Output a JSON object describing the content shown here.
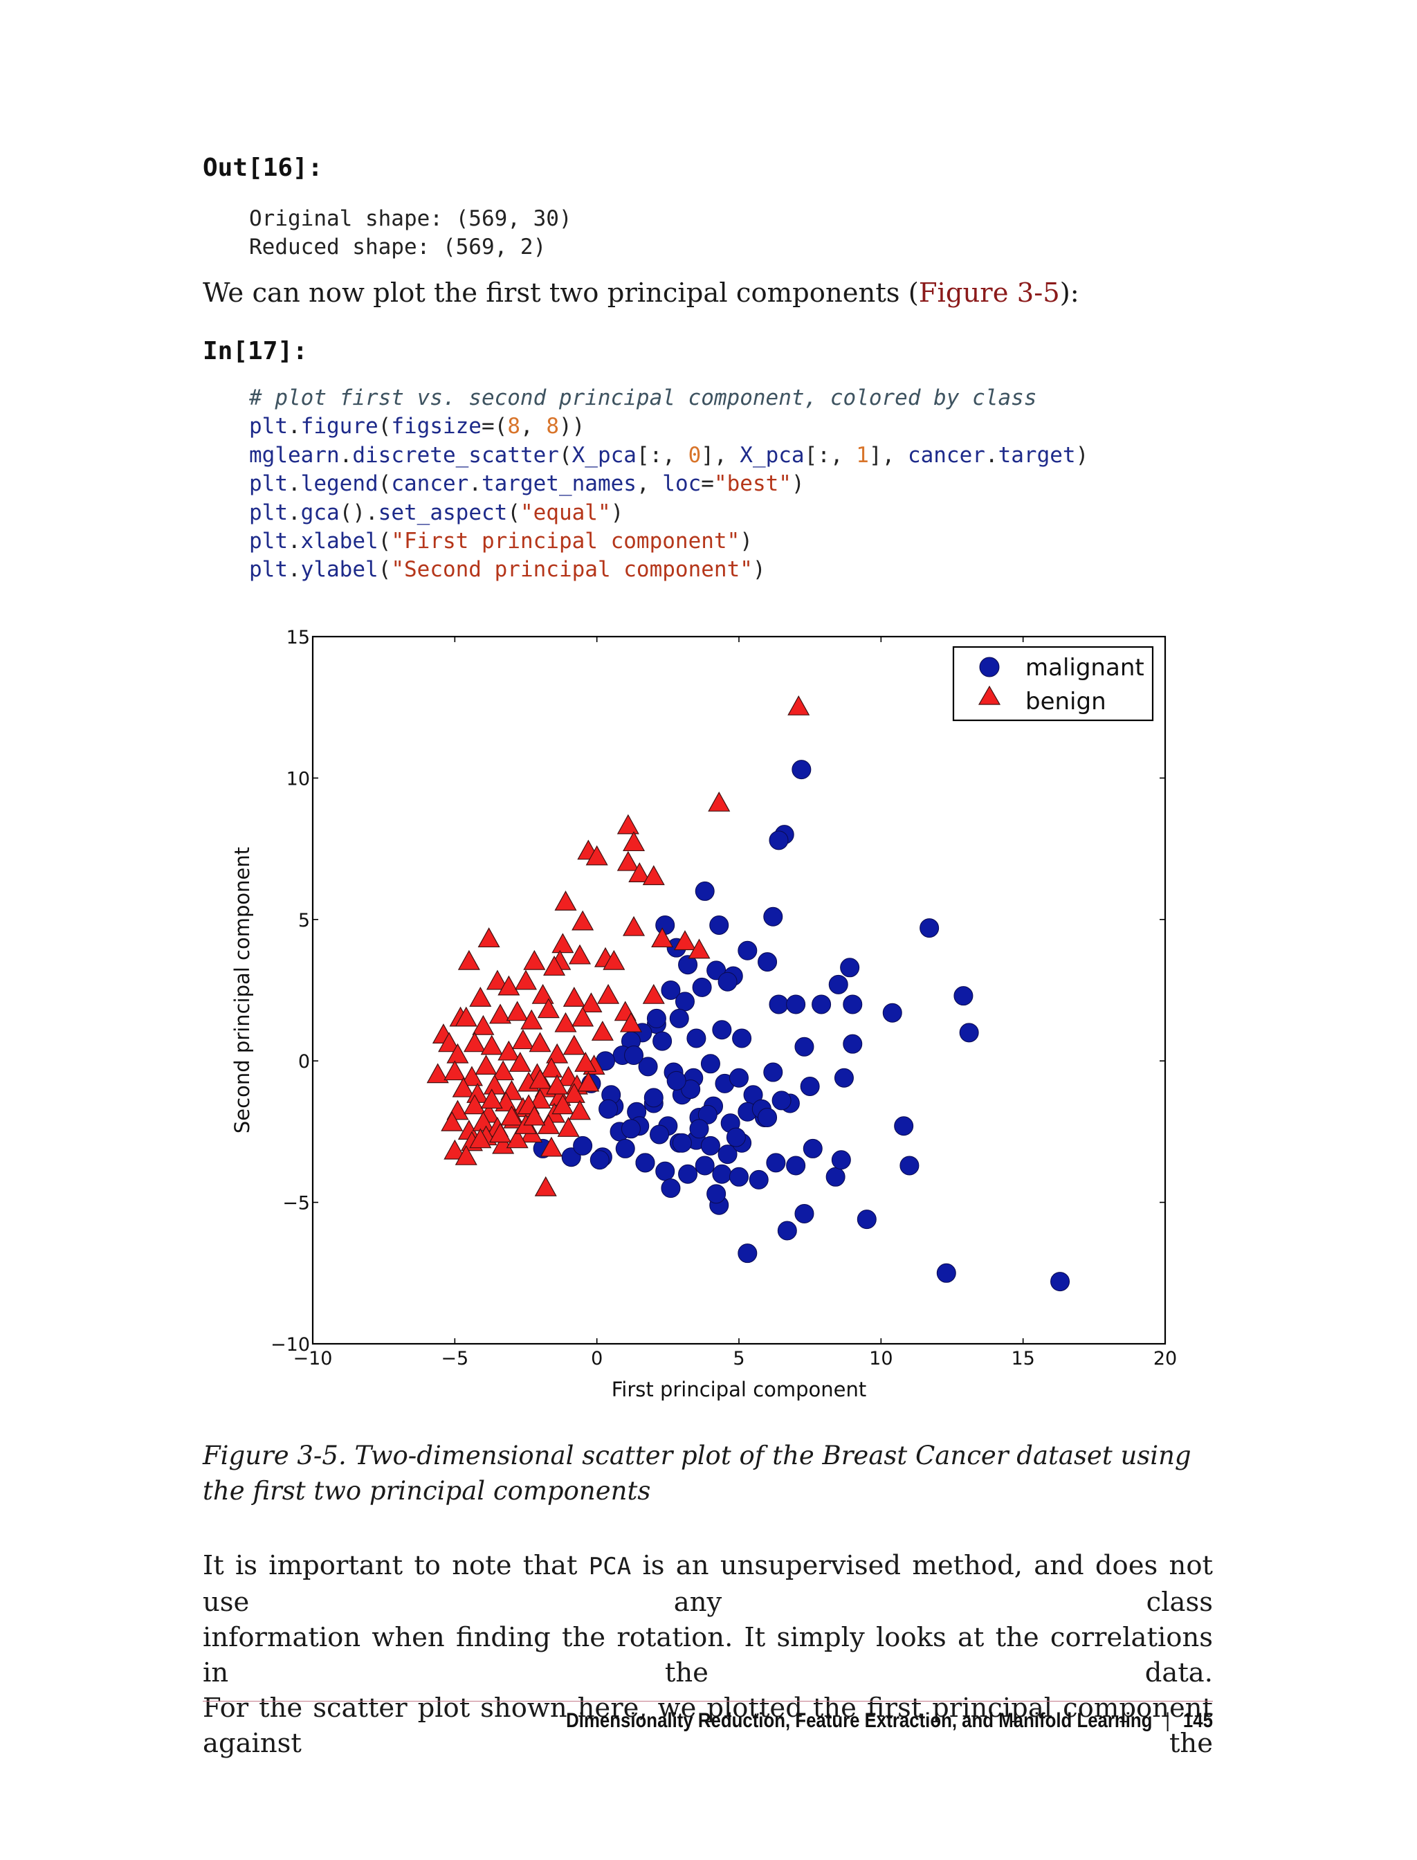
{
  "out_prompt": "Out[16]:",
  "out_lines": [
    "Original shape: (569, 30)",
    "Reduced shape: (569, 2)"
  ],
  "intro_text": "We can now plot the first two principal components (",
  "intro_link": "Figure 3-5",
  "intro_end": "):",
  "in_prompt": "In[17]:",
  "code": {
    "comment": "# plot first vs. second principal component, colored by class",
    "l1": [
      "plt",
      ".",
      "figure",
      "(",
      "figsize",
      "=(",
      "8",
      ", ",
      "8",
      "))"
    ],
    "l2": [
      "mglearn",
      ".",
      "discrete_scatter",
      "(",
      "X_pca",
      "[:, ",
      "0",
      "], ",
      "X_pca",
      "[:, ",
      "1",
      "], ",
      "cancer",
      ".",
      "target",
      ")"
    ],
    "l3": [
      "plt",
      ".",
      "legend",
      "(",
      "cancer",
      ".",
      "target_names",
      ", ",
      "loc",
      "=",
      "\"best\"",
      ")"
    ],
    "l4": [
      "plt",
      ".",
      "gca",
      "().",
      "set_aspect",
      "(",
      "\"equal\"",
      ")"
    ],
    "l5": [
      "plt",
      ".",
      "xlabel",
      "(",
      "\"First principal component\"",
      ")"
    ],
    "l6": [
      "plt",
      ".",
      "ylabel",
      "(",
      "\"Second principal component\"",
      ")"
    ]
  },
  "chart_data": {
    "type": "scatter",
    "xlabel": "First principal component",
    "ylabel": "Second principal component",
    "xlim": [
      -10,
      20
    ],
    "ylim": [
      -10,
      15
    ],
    "xticks": [
      "−10",
      "−5",
      "0",
      "5",
      "10",
      "15",
      "20"
    ],
    "yticks": [
      "15",
      "10",
      "5",
      "0",
      "−5",
      "−10"
    ],
    "legend_position": "top-right",
    "grid": false,
    "series": [
      {
        "name": "malignant",
        "marker": "circle",
        "color": "#0d1aa3",
        "x": [
          7.2,
          6.6,
          6.4,
          3.8,
          6.2,
          11.7,
          2.4,
          4.3,
          2.8,
          5.3,
          6.0,
          3.2,
          4.2,
          4.8,
          8.5,
          7.9,
          4.6,
          3.7,
          2.6,
          3.1,
          8.9,
          6.4,
          7.0,
          10.4,
          12.9,
          13.1,
          9.0,
          7.3,
          8.7,
          9.0,
          5.1,
          4.4,
          3.5,
          2.9,
          2.1,
          1.6,
          1.2,
          0.9,
          0.3,
          -0.2,
          0.6,
          1.8,
          2.7,
          3.4,
          4.0,
          4.5,
          5.0,
          5.5,
          6.2,
          6.8,
          7.5,
          1.4,
          2.0,
          2.5,
          3.0,
          3.6,
          4.1,
          4.7,
          5.3,
          5.9,
          6.5,
          0.8,
          1.5,
          2.2,
          2.9,
          3.5,
          4.0,
          4.6,
          5.1,
          0.2,
          1.0,
          1.7,
          2.4,
          3.2,
          3.8,
          4.4,
          5.0,
          5.7,
          6.3,
          7.0,
          7.6,
          10.8,
          11.0,
          8.4,
          8.6,
          9.5,
          7.3,
          6.7,
          5.3,
          12.3,
          16.3,
          -0.9,
          -0.5,
          -1.9,
          0.1,
          0.5,
          1.7,
          2.6,
          3.3,
          3.9,
          4.3,
          2.3,
          2.8,
          5.8,
          6.0,
          4.2,
          4.9,
          2.0,
          1.2,
          0.4,
          3.0,
          3.6,
          1.3,
          2.1
        ],
        "y": [
          10.3,
          8.0,
          7.8,
          6.0,
          5.1,
          4.7,
          4.8,
          4.8,
          4.0,
          3.9,
          3.5,
          3.4,
          3.2,
          3.0,
          2.7,
          2.0,
          2.8,
          2.6,
          2.5,
          2.1,
          3.3,
          2.0,
          2.0,
          1.7,
          2.3,
          1.0,
          2.0,
          0.5,
          -0.6,
          0.6,
          0.8,
          1.1,
          0.8,
          1.5,
          1.3,
          1.0,
          0.7,
          0.2,
          0.0,
          -0.8,
          -1.6,
          -0.2,
          -0.4,
          -0.6,
          -0.1,
          -0.8,
          -0.6,
          -1.2,
          -0.4,
          -1.5,
          -0.9,
          -1.8,
          -1.5,
          -2.3,
          -1.2,
          -2.0,
          -1.6,
          -2.2,
          -1.8,
          -2.0,
          -1.4,
          -2.5,
          -2.3,
          -2.6,
          -2.9,
          -2.8,
          -3.0,
          -3.3,
          -2.9,
          -3.4,
          -3.1,
          -3.6,
          -3.9,
          -4.0,
          -3.7,
          -4.0,
          -4.1,
          -4.2,
          -3.6,
          -3.7,
          -3.1,
          -2.3,
          -3.7,
          -4.1,
          -3.5,
          -5.6,
          -5.4,
          -6.0,
          -6.8,
          -7.5,
          -7.8,
          -3.4,
          -3.0,
          -3.1,
          -3.5,
          -1.2,
          -3.6,
          -4.5,
          -1.0,
          -1.9,
          -5.1,
          0.7,
          -0.7,
          -1.7,
          -2.0,
          -4.7,
          -2.7,
          -1.3,
          -2.4,
          -1.7,
          -2.9,
          -2.4,
          0.2,
          1.5
        ],
        "labels": []
      },
      {
        "name": "benign",
        "marker": "triangle",
        "color": "#f02020",
        "x": [
          7.1,
          4.3,
          1.1,
          1.3,
          -0.3,
          0.0,
          1.1,
          1.5,
          2.0,
          -1.1,
          -0.5,
          1.3,
          2.3,
          3.1,
          3.6,
          -3.8,
          -4.5,
          -1.2,
          -1.3,
          -0.6,
          0.3,
          0.6,
          -2.2,
          -1.5,
          -3.5,
          -3.1,
          -2.5,
          -1.9,
          -0.8,
          -0.2,
          0.4,
          1.0,
          2.0,
          -4.1,
          -4.8,
          -5.4,
          -5.2,
          -4.6,
          -4.0,
          -3.4,
          -2.8,
          -2.3,
          -1.7,
          -1.1,
          -0.5,
          0.2,
          1.2,
          -5.6,
          -4.9,
          -4.3,
          -3.7,
          -3.1,
          -2.6,
          -2.0,
          -1.4,
          -0.8,
          -0.1,
          -5.0,
          -4.4,
          -3.9,
          -3.3,
          -2.7,
          -2.1,
          -1.6,
          -1.0,
          -0.4,
          -4.7,
          -4.2,
          -3.6,
          -3.0,
          -2.4,
          -1.8,
          -1.3,
          -0.7,
          -4.9,
          -4.3,
          -3.8,
          -3.2,
          -2.6,
          -2.0,
          -1.5,
          -5.1,
          -4.5,
          -4.0,
          -3.5,
          -2.9,
          -2.3,
          -1.7,
          -5.0,
          -4.4,
          -3.9,
          -3.3,
          -2.8,
          -1.6,
          -4.6,
          -3.4,
          -1.8,
          -0.8,
          -2.4,
          -1.0,
          -3.0,
          -2.0,
          -1.2,
          -4.1,
          -2.5,
          -1.4,
          -0.3,
          -3.7,
          -2.2,
          -0.6
        ],
        "y": [
          12.5,
          9.1,
          8.3,
          7.7,
          7.4,
          7.2,
          7.0,
          6.6,
          6.5,
          5.6,
          4.9,
          4.7,
          4.3,
          4.2,
          3.9,
          4.3,
          3.5,
          4.1,
          3.5,
          3.7,
          3.6,
          3.5,
          3.5,
          3.3,
          2.8,
          2.6,
          2.8,
          2.3,
          2.2,
          2.0,
          2.3,
          1.7,
          2.3,
          2.2,
          1.5,
          0.9,
          0.6,
          1.5,
          1.2,
          1.6,
          1.7,
          1.4,
          1.8,
          1.3,
          1.5,
          1.0,
          1.3,
          -0.5,
          0.2,
          0.6,
          0.5,
          0.3,
          0.7,
          0.6,
          0.2,
          0.5,
          -0.2,
          -0.4,
          -0.6,
          -0.2,
          -0.4,
          -0.1,
          -0.5,
          -0.3,
          -0.6,
          -0.1,
          -1.0,
          -1.2,
          -0.9,
          -1.1,
          -0.8,
          -1.0,
          -1.3,
          -0.9,
          -1.8,
          -1.6,
          -1.9,
          -1.5,
          -1.7,
          -1.4,
          -1.9,
          -2.2,
          -2.5,
          -2.2,
          -2.4,
          -2.1,
          -2.6,
          -2.3,
          -3.2,
          -2.9,
          -2.7,
          -3.0,
          -2.8,
          -3.1,
          -3.4,
          -2.6,
          -4.5,
          -1.2,
          -1.6,
          -2.4,
          -2.0,
          -0.7,
          -1.6,
          -2.8,
          -2.3,
          -0.9,
          -0.8,
          -1.4,
          -2.0,
          -1.8
        ],
        "labels": []
      }
    ]
  },
  "caption": "Figure 3-5. Two-dimensional scatter plot of the Breast Cancer dataset using the first two principal components",
  "body_lines": [
    "It is important to note that ",
    "PCA",
    " is an unsupervised method, and does not use any class",
    "information when finding the rotation. It simply looks at the correlations in the data.",
    "For the scatter plot shown here, we plotted the first principal component against the"
  ],
  "footer": {
    "title": "Dimensionality Reduction, Feature Extraction, and Manifold Learning",
    "separator": "|",
    "page": "145"
  }
}
